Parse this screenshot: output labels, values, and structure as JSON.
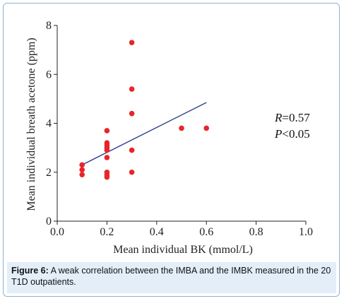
{
  "chart_data": {
    "type": "scatter",
    "title": "",
    "xlabel": "Mean individual BK (mmol/L)",
    "ylabel": "Mean individual breath acetone (ppm)",
    "xlim": [
      0.0,
      1.0
    ],
    "ylim": [
      0,
      8
    ],
    "x_ticks": [
      "0.0",
      "0.2",
      "0.4",
      "0.6",
      "0.8",
      "1.0"
    ],
    "y_ticks": [
      "0",
      "2",
      "4",
      "6",
      "8"
    ],
    "x_tick_values": [
      0.0,
      0.2,
      0.4,
      0.6,
      0.8,
      1.0
    ],
    "y_tick_values": [
      0,
      2,
      4,
      6,
      8
    ],
    "points": [
      {
        "x": 0.1,
        "y": 2.3
      },
      {
        "x": 0.1,
        "y": 2.1
      },
      {
        "x": 0.1,
        "y": 1.9
      },
      {
        "x": 0.2,
        "y": 3.7
      },
      {
        "x": 0.2,
        "y": 3.2
      },
      {
        "x": 0.2,
        "y": 3.1
      },
      {
        "x": 0.2,
        "y": 3.0
      },
      {
        "x": 0.2,
        "y": 2.9
      },
      {
        "x": 0.2,
        "y": 2.6
      },
      {
        "x": 0.2,
        "y": 2.0
      },
      {
        "x": 0.2,
        "y": 1.9
      },
      {
        "x": 0.2,
        "y": 1.8
      },
      {
        "x": 0.3,
        "y": 7.3
      },
      {
        "x": 0.3,
        "y": 5.4
      },
      {
        "x": 0.3,
        "y": 4.4
      },
      {
        "x": 0.3,
        "y": 2.9
      },
      {
        "x": 0.3,
        "y": 2.0
      },
      {
        "x": 0.5,
        "y": 3.8
      },
      {
        "x": 0.6,
        "y": 3.8
      }
    ],
    "trendline": {
      "x": [
        0.1,
        0.6
      ],
      "y": [
        2.3,
        4.85
      ]
    },
    "annotations": {
      "r_label": "R",
      "r_value": "=0.57",
      "p_label": "P",
      "p_value": "<0.05"
    },
    "grid": false,
    "colors": {
      "points": "#e8252b",
      "trendline": "#2b3f8f",
      "axis": "#222222"
    }
  },
  "caption": {
    "label": "Figure 6:",
    "text": " A weak correlation between the IMBA and the IMBK measured in the 20 T1D outpatients."
  },
  "colors": {
    "caption_bg": "#e4eef9",
    "frame_border": "#8fb3d4"
  }
}
